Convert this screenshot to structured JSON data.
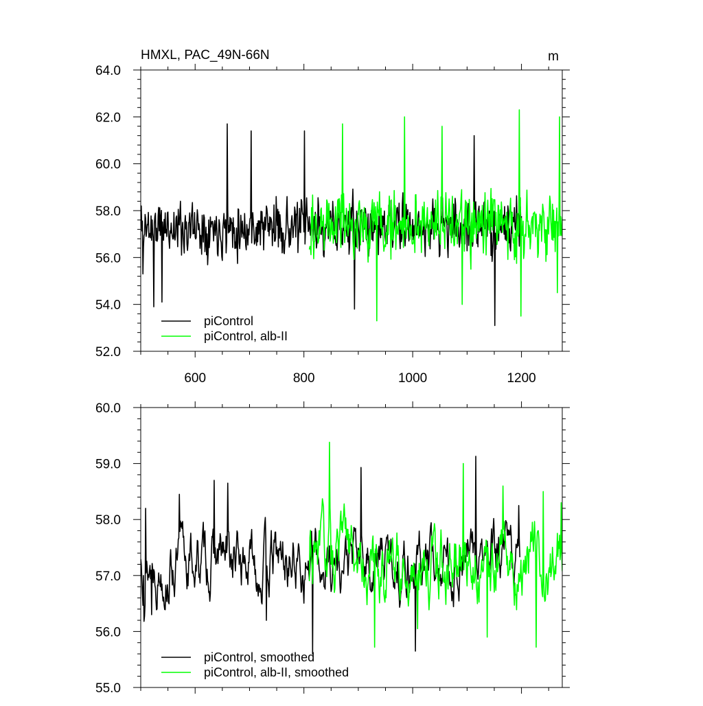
{
  "chart_data": [
    {
      "type": "line",
      "title": "HMXL, PAC_49N-66N",
      "units": "m",
      "xlim": [
        500,
        1275
      ],
      "ylim": [
        52,
        64
      ],
      "xticks": [
        600,
        800,
        1000,
        1200
      ],
      "xtick_labels": [
        "600",
        "800",
        "1000",
        "1200"
      ],
      "yticks": [
        52,
        54,
        56,
        58,
        60,
        62,
        64
      ],
      "ytick_labels": [
        "52.0",
        "54.0",
        "56.0",
        "58.0",
        "60.0",
        "62.0",
        "64.0"
      ],
      "legend_position": "bottom-left",
      "series": [
        {
          "name": "piControl",
          "color": "#000000",
          "x_start": 500,
          "x_end": 1200,
          "mean": 57.3,
          "amplitude": 1.35,
          "seed": 11,
          "key_points": [
            [
              501,
              58.2
            ],
            [
              504,
              55.3
            ],
            [
              524,
              53.9
            ],
            [
              539,
              54.1
            ],
            [
              659,
              61.7
            ],
            [
              703,
              61.4
            ],
            [
              801,
              61.4
            ],
            [
              893,
              53.8
            ],
            [
              1113,
              61.2
            ],
            [
              1151,
              53.1
            ]
          ]
        },
        {
          "name": "piControl, alb-II",
          "color": "#00ff00",
          "x_start": 810,
          "x_end": 1275,
          "mean": 57.4,
          "amplitude": 1.6,
          "seed": 29,
          "key_points": [
            [
              871,
              61.7
            ],
            [
              934,
              53.3
            ],
            [
              985,
              62.0
            ],
            [
              1054,
              61.6
            ],
            [
              1091,
              54.0
            ],
            [
              1196,
              62.3
            ],
            [
              1199,
              53.5
            ],
            [
              1270,
              62.0
            ],
            [
              1266,
              54.5
            ]
          ]
        }
      ]
    },
    {
      "type": "line",
      "xlim": [
        500,
        1275
      ],
      "ylim": [
        55,
        60
      ],
      "xticks": [
        600,
        800,
        1000,
        1200
      ],
      "yticks": [
        55,
        56,
        57,
        58,
        59,
        60
      ],
      "ytick_labels": [
        "55.0",
        "56.0",
        "57.0",
        "58.0",
        "59.0",
        "60.0"
      ],
      "legend_position": "bottom-left",
      "series": [
        {
          "name": "piControl, smoothed",
          "color": "#000000",
          "x_start": 500,
          "x_end": 1197,
          "mean": 57.25,
          "amplitude": 0.55,
          "seed": 13,
          "key_points": [
            [
              502,
              56.95
            ],
            [
              505,
              57.0
            ],
            [
              509,
              58.2
            ],
            [
              520,
              56.3
            ],
            [
              571,
              58.45
            ],
            [
              635,
              58.7
            ],
            [
              660,
              58.65
            ],
            [
              731,
              56.2
            ],
            [
              816,
              55.6
            ],
            [
              905,
              58.93
            ],
            [
              1005,
              55.65
            ],
            [
              1116,
              59.13
            ],
            [
              1195,
              58.25
            ]
          ]
        },
        {
          "name": "piControl, alb-II, smoothed",
          "color": "#00ff00",
          "x_start": 810,
          "x_end": 1275,
          "mean": 57.3,
          "amplitude": 0.65,
          "seed": 31,
          "key_points": [
            [
              810,
              56.9
            ],
            [
              847,
              59.38
            ],
            [
              850,
              57.2
            ],
            [
              930,
              55.72
            ],
            [
              1009,
              56.05
            ],
            [
              1093,
              59.0
            ],
            [
              1137,
              55.9
            ],
            [
              1166,
              58.6
            ],
            [
              1227,
              55.72
            ],
            [
              1240,
              58.5
            ],
            [
              1273,
              58.3
            ]
          ]
        }
      ]
    }
  ]
}
